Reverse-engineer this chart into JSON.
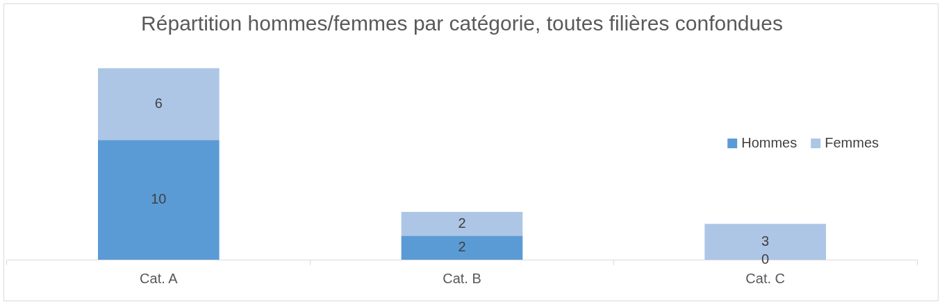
{
  "chart_data": {
    "type": "bar",
    "title": "Répartition hommes/femmes par catégorie, toutes filières confondues",
    "categories": [
      "Cat. A",
      "Cat. B",
      "Cat. C"
    ],
    "stacked": true,
    "series": [
      {
        "name": "Hommes",
        "color": "#5b9bd5",
        "values": [
          10,
          2,
          0
        ]
      },
      {
        "name": "Femmes",
        "color": "#adc6e6",
        "values": [
          6,
          2,
          3
        ]
      }
    ],
    "data_labels": true,
    "legend": "right",
    "grid": false,
    "tick_labels": "x"
  }
}
